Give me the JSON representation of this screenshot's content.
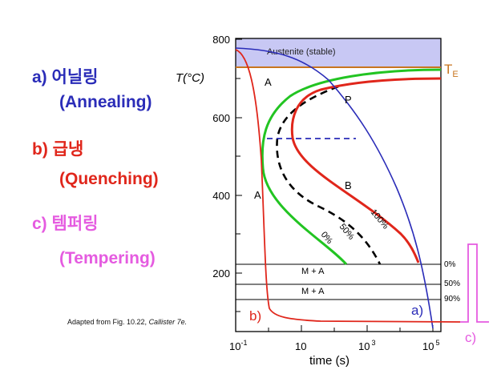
{
  "steps": [
    {
      "letter": "a)",
      "korean": "어닐링",
      "english": "(Annealing)"
    },
    {
      "letter": "b)",
      "korean": "급냉",
      "english": "(Quenching)"
    },
    {
      "letter": "c)",
      "korean": "템퍼링",
      "english": "(Tempering)"
    }
  ],
  "credit": {
    "prefix": "Adapted from Fig. 10.22, ",
    "source": "Callister 7e."
  },
  "colors": {
    "annealing": "#2a2cb8",
    "quenching": "#e0261b",
    "tempering": "#e55be0",
    "austenite_fill": "#c8c8f4",
    "eutectoid": "#c8751f",
    "curve_0": "#22c422",
    "curve_100": "#e0261b"
  },
  "diagram": {
    "y_axis_label": "T(°C)",
    "y_ticks": [
      "800",
      "600",
      "400",
      "200"
    ],
    "x_axis_label": "time (s)",
    "x_ticks": [
      {
        "base": "10",
        "exp": "-1"
      },
      {
        "base": "10",
        "exp": ""
      },
      {
        "base": "10",
        "exp": "3"
      },
      {
        "base": "10",
        "exp": "5"
      }
    ],
    "austenite_label": "Austenite (stable)",
    "te_label": "T",
    "te_sub": "E",
    "region_labels": [
      "A",
      "P",
      "A",
      "B"
    ],
    "curve_labels": [
      "100%",
      "50%",
      "0%"
    ],
    "martensite_labels": [
      "M + A",
      "M + A"
    ],
    "martensite_pcts": [
      "0%",
      "50%",
      "90%"
    ],
    "path_labels": [
      "a)",
      "b)",
      "c)"
    ]
  }
}
